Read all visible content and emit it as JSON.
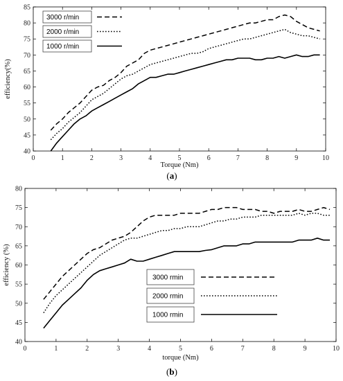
{
  "chart_data": [
    {
      "type": "line",
      "sublabel": "(a)",
      "xlabel": "Torque (Nm)",
      "ylabel": "efficiency(%)",
      "xlim": [
        0,
        10
      ],
      "ylim": [
        40,
        85
      ],
      "xticks": [
        "0",
        "1",
        "2",
        "3",
        "4",
        "5",
        "6",
        "7",
        "8",
        "9",
        "10"
      ],
      "yticks": [
        "40",
        "45",
        "50",
        "55",
        "60",
        "65",
        "70",
        "75",
        "80",
        "85"
      ],
      "grid": false,
      "legend_position": "top-left",
      "series": [
        {
          "name": "3000 r/min",
          "style": "dashed",
          "x": [
            0.6,
            0.8,
            1.0,
            1.2,
            1.4,
            1.6,
            1.8,
            2.0,
            2.2,
            2.4,
            2.6,
            2.8,
            3.0,
            3.2,
            3.4,
            3.6,
            3.8,
            4.0,
            4.2,
            4.4,
            4.6,
            4.8,
            5.0,
            5.2,
            5.4,
            5.6,
            5.8,
            6.0,
            6.2,
            6.4,
            6.6,
            6.8,
            7.0,
            7.2,
            7.4,
            7.6,
            7.8,
            8.0,
            8.2,
            8.4,
            8.6,
            8.8,
            9.0,
            9.2,
            9.4,
            9.6,
            9.8
          ],
          "y": [
            46.5,
            48.5,
            50.0,
            52.0,
            53.5,
            55.0,
            57.0,
            59.0,
            60.0,
            60.5,
            62.0,
            63.0,
            64.5,
            66.5,
            67.5,
            68.5,
            70.5,
            71.5,
            72.0,
            72.5,
            73.0,
            73.5,
            74.0,
            74.5,
            75.0,
            75.5,
            76.0,
            76.5,
            77.0,
            77.5,
            78.0,
            78.5,
            79.0,
            79.5,
            80.0,
            80.0,
            80.5,
            81.0,
            81.0,
            82.0,
            82.5,
            82.0,
            80.5,
            79.5,
            78.5,
            78.0,
            77.5
          ]
        },
        {
          "name": "2000 r/min",
          "style": "dotted",
          "x": [
            0.6,
            0.8,
            1.0,
            1.2,
            1.4,
            1.6,
            1.8,
            2.0,
            2.2,
            2.4,
            2.6,
            2.8,
            3.0,
            3.2,
            3.4,
            3.6,
            3.8,
            4.0,
            4.2,
            4.4,
            4.6,
            4.8,
            5.0,
            5.2,
            5.4,
            5.6,
            5.8,
            6.0,
            6.2,
            6.4,
            6.6,
            6.8,
            7.0,
            7.2,
            7.4,
            7.6,
            7.8,
            8.0,
            8.2,
            8.4,
            8.6,
            8.8,
            9.0,
            9.2,
            9.4,
            9.6,
            9.8
          ],
          "y": [
            43.5,
            45.5,
            47.0,
            49.0,
            50.5,
            52.0,
            54.0,
            56.0,
            57.0,
            58.0,
            59.5,
            61.0,
            62.5,
            63.5,
            64.0,
            65.0,
            66.0,
            67.0,
            67.5,
            68.0,
            68.5,
            69.0,
            69.5,
            70.0,
            70.5,
            70.5,
            71.0,
            72.0,
            72.5,
            73.0,
            73.5,
            74.0,
            74.5,
            75.0,
            75.0,
            75.5,
            76.0,
            76.5,
            77.0,
            77.5,
            78.0,
            77.0,
            76.5,
            76.0,
            76.0,
            75.5,
            75.0
          ]
        },
        {
          "name": "1000 r/min",
          "style": "solid",
          "x": [
            0.6,
            0.8,
            1.0,
            1.2,
            1.4,
            1.6,
            1.8,
            2.0,
            2.2,
            2.4,
            2.6,
            2.8,
            3.0,
            3.2,
            3.4,
            3.6,
            3.8,
            4.0,
            4.2,
            4.4,
            4.6,
            4.8,
            5.0,
            5.2,
            5.4,
            5.6,
            5.8,
            6.0,
            6.2,
            6.4,
            6.6,
            6.8,
            7.0,
            7.2,
            7.4,
            7.6,
            7.8,
            8.0,
            8.2,
            8.4,
            8.6,
            8.8,
            9.0,
            9.2,
            9.4,
            9.6,
            9.8
          ],
          "y": [
            40.0,
            42.5,
            44.5,
            46.5,
            48.5,
            50.0,
            51.0,
            52.5,
            53.5,
            54.5,
            55.5,
            56.5,
            57.5,
            58.5,
            59.5,
            61.0,
            62.0,
            63.0,
            63.0,
            63.5,
            64.0,
            64.0,
            64.5,
            65.0,
            65.5,
            66.0,
            66.5,
            67.0,
            67.5,
            68.0,
            68.5,
            68.5,
            69.0,
            69.0,
            69.0,
            68.5,
            68.5,
            69.0,
            69.0,
            69.5,
            69.0,
            69.5,
            70.0,
            69.5,
            69.5,
            70.0,
            70.0
          ]
        }
      ]
    },
    {
      "type": "line",
      "sublabel": "(b)",
      "xlabel": "torque (Nm)",
      "ylabel": "efficiency (%)",
      "xlim": [
        0,
        10
      ],
      "ylim": [
        40,
        80
      ],
      "xticks": [
        "0",
        "1",
        "2",
        "3",
        "4",
        "5",
        "6",
        "7",
        "8",
        "9",
        "10"
      ],
      "yticks": [
        "40",
        "45",
        "50",
        "55",
        "60",
        "65",
        "70",
        "75",
        "80"
      ],
      "grid": false,
      "legend_position": "center",
      "series": [
        {
          "name": "3000 rmin",
          "style": "dashed",
          "x": [
            0.6,
            0.8,
            1.0,
            1.2,
            1.4,
            1.6,
            1.8,
            2.0,
            2.2,
            2.4,
            2.6,
            2.8,
            3.0,
            3.2,
            3.4,
            3.6,
            3.8,
            4.0,
            4.2,
            4.4,
            4.6,
            4.8,
            5.0,
            5.2,
            5.4,
            5.6,
            5.8,
            6.0,
            6.2,
            6.4,
            6.6,
            6.8,
            7.0,
            7.2,
            7.4,
            7.6,
            7.8,
            8.0,
            8.2,
            8.4,
            8.6,
            8.8,
            9.0,
            9.2,
            9.4,
            9.6,
            9.8
          ],
          "y": [
            51.0,
            53.0,
            55.0,
            57.0,
            58.5,
            60.0,
            61.5,
            63.0,
            64.0,
            64.5,
            65.5,
            66.5,
            67.0,
            67.5,
            68.5,
            70.0,
            71.5,
            72.5,
            73.0,
            73.0,
            73.0,
            73.0,
            73.5,
            73.5,
            73.5,
            73.5,
            74.0,
            74.5,
            74.5,
            75.0,
            75.0,
            75.0,
            74.5,
            74.5,
            74.5,
            74.0,
            74.0,
            73.5,
            74.0,
            74.0,
            74.0,
            74.5,
            74.0,
            74.0,
            74.5,
            75.0,
            74.5
          ]
        },
        {
          "name": "2000 rmin",
          "style": "dotted",
          "x": [
            0.6,
            0.8,
            1.0,
            1.2,
            1.4,
            1.6,
            1.8,
            2.0,
            2.2,
            2.4,
            2.6,
            2.8,
            3.0,
            3.2,
            3.4,
            3.6,
            3.8,
            4.0,
            4.2,
            4.4,
            4.6,
            4.8,
            5.0,
            5.2,
            5.4,
            5.6,
            5.8,
            6.0,
            6.2,
            6.4,
            6.6,
            6.8,
            7.0,
            7.2,
            7.4,
            7.6,
            7.8,
            8.0,
            8.2,
            8.4,
            8.6,
            8.8,
            9.0,
            9.2,
            9.4,
            9.6,
            9.8
          ],
          "y": [
            47.5,
            50.0,
            52.0,
            53.5,
            55.0,
            56.5,
            58.0,
            59.5,
            61.0,
            62.5,
            63.5,
            64.5,
            65.5,
            66.5,
            67.0,
            67.0,
            67.5,
            68.0,
            68.5,
            69.0,
            69.0,
            69.5,
            69.5,
            70.0,
            70.0,
            70.0,
            70.5,
            71.0,
            71.5,
            71.5,
            72.0,
            72.0,
            72.5,
            72.5,
            72.5,
            73.0,
            73.0,
            73.0,
            73.0,
            73.0,
            73.0,
            73.5,
            73.0,
            73.5,
            73.5,
            73.0,
            73.0
          ]
        },
        {
          "name": "1000 rmin",
          "style": "solid",
          "x": [
            0.6,
            0.8,
            1.0,
            1.2,
            1.4,
            1.6,
            1.8,
            2.0,
            2.2,
            2.4,
            2.6,
            2.8,
            3.0,
            3.2,
            3.4,
            3.6,
            3.8,
            4.0,
            4.2,
            4.4,
            4.6,
            4.8,
            5.0,
            5.2,
            5.4,
            5.6,
            5.8,
            6.0,
            6.2,
            6.4,
            6.6,
            6.8,
            7.0,
            7.2,
            7.4,
            7.6,
            7.8,
            8.0,
            8.2,
            8.4,
            8.6,
            8.8,
            9.0,
            9.2,
            9.4,
            9.6,
            9.8
          ],
          "y": [
            43.5,
            45.5,
            47.5,
            49.5,
            51.0,
            52.5,
            54.0,
            56.0,
            57.5,
            58.5,
            59.0,
            59.5,
            60.0,
            60.5,
            61.5,
            61.0,
            61.0,
            61.5,
            62.0,
            62.5,
            63.0,
            63.5,
            63.5,
            63.5,
            63.5,
            63.5,
            63.8,
            64.0,
            64.5,
            65.0,
            65.0,
            65.0,
            65.5,
            65.5,
            66.0,
            66.0,
            66.0,
            66.0,
            66.0,
            66.0,
            66.0,
            66.5,
            66.5,
            66.5,
            67.0,
            66.5,
            66.5
          ]
        }
      ]
    }
  ]
}
